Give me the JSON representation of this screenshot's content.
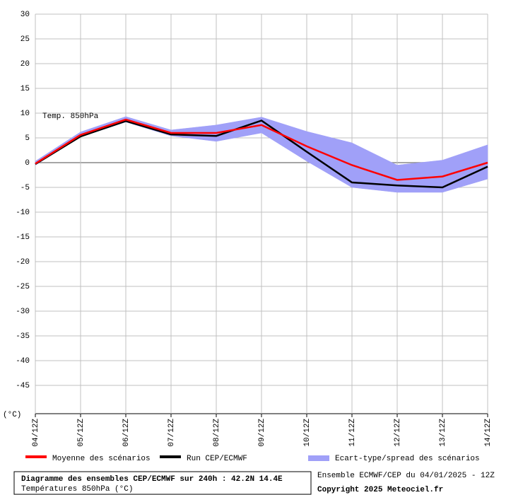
{
  "chart_data": {
    "type": "line",
    "annotations": [
      "Temp. 850hPa",
      "(°C)"
    ],
    "categories": [
      "04/12Z",
      "05/12Z",
      "06/12Z",
      "07/12Z",
      "08/12Z",
      "09/12Z",
      "10/12Z",
      "11/12Z",
      "12/12Z",
      "13/12Z",
      "14/12Z"
    ],
    "series": [
      {
        "name": "Moyenne des scénarios",
        "color": "#ff0000",
        "values": [
          -0.2,
          5.6,
          8.7,
          6.0,
          6.0,
          7.6,
          3.3,
          -0.5,
          -3.5,
          -2.8,
          0.0
        ]
      },
      {
        "name": "Run CEP/ECMWF",
        "color": "#000000",
        "values": [
          -0.3,
          5.3,
          8.4,
          5.7,
          5.4,
          8.5,
          2.2,
          -4.0,
          -4.6,
          -5.0,
          -0.8
        ]
      },
      {
        "name": "Ecart-type/spread des scénarios",
        "color": "#a0a0f8",
        "low": [
          -0.5,
          5.2,
          8.2,
          5.4,
          4.3,
          6.0,
          0.3,
          -5.0,
          -6.0,
          -6.0,
          -3.3
        ],
        "high": [
          0.3,
          6.2,
          9.3,
          6.6,
          7.6,
          9.2,
          6.3,
          4.0,
          -0.5,
          0.5,
          3.6
        ]
      }
    ],
    "ylim": [
      -50,
      30
    ],
    "yticks": [
      30,
      25,
      20,
      15,
      10,
      5,
      0,
      -5,
      -10,
      -15,
      -20,
      -25,
      -30,
      -35,
      -40,
      -45
    ],
    "grid": true,
    "footer": {
      "title": "Diagramme des ensembles CEP/ECMWF sur 240h : 42.2N 14.4E",
      "subtitle": "Températures 850hPa (°C)",
      "run": "Ensemble ECMWF/CEP du 04/01/2025 - 12Z",
      "copyright": "Copyright 2025 Meteociel.fr"
    }
  }
}
